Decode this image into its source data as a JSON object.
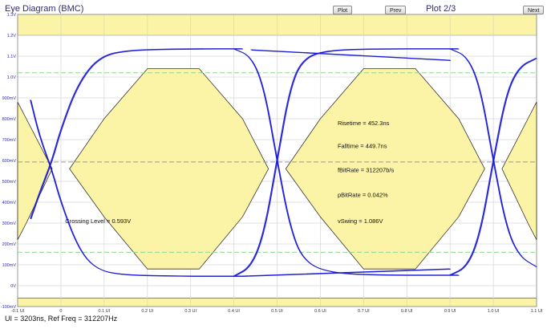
{
  "header": {
    "title": "Eye Diagram (BMC)",
    "plot_label": "Plot 2/3",
    "buttons": {
      "plot": "Plot",
      "prev": "Prev",
      "next": "Next"
    }
  },
  "footer": {
    "info": "UI = 3203ns, Ref Freq = 312207Hz"
  },
  "annotations": {
    "crossing_level": "Crossing Level = 0.593V",
    "risetime": "Risetime = 452.3ns",
    "falltime": "Falltime = 449.7ns",
    "fbitrate": "fBitRate = 312207b/s",
    "pbitrate": "pBitRate = 0.042%",
    "vswing": "vSwing = 1.086V"
  },
  "colors": {
    "trace": "#1a1ad6",
    "mask_fill": "#fbf3a5",
    "mask_stroke": "#333333",
    "grid": "#d6d6d6",
    "crossing_line": "#999999",
    "limit_line": "#8fd88f"
  },
  "chart_data": {
    "type": "line",
    "title": "Eye Diagram (BMC)",
    "x_unit": "UI",
    "y_unit": "V",
    "xlim": [
      -0.1,
      1.1
    ],
    "ylim": [
      -0.1,
      1.3
    ],
    "x_ticks": [
      "-0.1 UI",
      "0",
      "0.1 UI",
      "0.2 UI",
      "0.3 UI",
      "0.4 UI",
      "0.5 UI",
      "0.6 UI",
      "0.7 UI",
      "0.8 UI",
      "0.9 UI",
      "1.0 UI",
      "1.1 UI"
    ],
    "y_ticks": [
      "-100mV",
      "0V",
      "100mV",
      "200mV",
      "300mV",
      "400mV",
      "500mV",
      "600mV",
      "700mV",
      "800mV",
      "900mV",
      "1.0V",
      "1.1V",
      "1.2V",
      "1.3V"
    ],
    "grid": true,
    "crossing_level": 0.593,
    "limit_lines": [
      1.02,
      0.16
    ],
    "forbidden_bands": [
      [
        1.2,
        1.3
      ],
      [
        -0.1,
        -0.06
      ]
    ],
    "high_level": 1.135,
    "low_level": 0.048,
    "crossings": [
      -0.02,
      0.5,
      1.0
    ],
    "masks": [
      {
        "name": "left",
        "points": [
          [
            -0.1,
            0.88
          ],
          [
            -0.08,
            0.8
          ],
          [
            -0.02,
            0.56
          ],
          [
            -0.08,
            0.3
          ],
          [
            -0.1,
            0.22
          ]
        ]
      },
      {
        "name": "eye-1",
        "points": [
          [
            0.02,
            0.56
          ],
          [
            0.1,
            0.8
          ],
          [
            0.2,
            1.04
          ],
          [
            0.32,
            1.04
          ],
          [
            0.42,
            0.8
          ],
          [
            0.48,
            0.56
          ],
          [
            0.42,
            0.33
          ],
          [
            0.32,
            0.08
          ],
          [
            0.2,
            0.08
          ],
          [
            0.1,
            0.33
          ]
        ]
      },
      {
        "name": "eye-2",
        "points": [
          [
            0.52,
            0.56
          ],
          [
            0.6,
            0.8
          ],
          [
            0.7,
            1.04
          ],
          [
            0.82,
            1.04
          ],
          [
            0.92,
            0.8
          ],
          [
            0.98,
            0.56
          ],
          [
            0.92,
            0.33
          ],
          [
            0.82,
            0.08
          ],
          [
            0.7,
            0.08
          ],
          [
            0.6,
            0.33
          ]
        ]
      },
      {
        "name": "right",
        "points": [
          [
            1.1,
            0.88
          ],
          [
            1.08,
            0.8
          ],
          [
            1.02,
            0.56
          ],
          [
            1.08,
            0.3
          ],
          [
            1.1,
            0.22
          ]
        ]
      }
    ],
    "traces": [
      {
        "name": "fall-early",
        "points": [
          [
            -0.07,
            0.89
          ],
          [
            -0.05,
            0.72
          ],
          [
            -0.02,
            0.55
          ],
          [
            0.0,
            0.4
          ],
          [
            0.04,
            0.18
          ],
          [
            0.08,
            0.08
          ],
          [
            0.14,
            0.05
          ],
          [
            0.3,
            0.045
          ],
          [
            0.42,
            0.045
          ]
        ]
      },
      {
        "name": "rise-early",
        "points": [
          [
            -0.07,
            0.32
          ],
          [
            -0.05,
            0.44
          ],
          [
            -0.02,
            0.6
          ],
          [
            0.0,
            0.75
          ],
          [
            0.04,
            0.97
          ],
          [
            0.09,
            1.1
          ],
          [
            0.16,
            1.13
          ],
          [
            0.3,
            1.135
          ],
          [
            0.42,
            1.135
          ]
        ]
      },
      {
        "name": "fall-mid",
        "points": [
          [
            0.4,
            1.135
          ],
          [
            0.44,
            1.1
          ],
          [
            0.47,
            0.95
          ],
          [
            0.5,
            0.6
          ],
          [
            0.53,
            0.28
          ],
          [
            0.56,
            0.12
          ],
          [
            0.62,
            0.06
          ],
          [
            0.75,
            0.05
          ],
          [
            0.92,
            0.05
          ]
        ]
      },
      {
        "name": "rise-mid",
        "points": [
          [
            0.4,
            0.045
          ],
          [
            0.44,
            0.09
          ],
          [
            0.47,
            0.25
          ],
          [
            0.5,
            0.6
          ],
          [
            0.53,
            0.95
          ],
          [
            0.56,
            1.09
          ],
          [
            0.62,
            1.13
          ],
          [
            0.75,
            1.135
          ],
          [
            0.92,
            1.135
          ]
        ]
      },
      {
        "name": "fall-late",
        "points": [
          [
            0.9,
            1.135
          ],
          [
            0.94,
            1.1
          ],
          [
            0.97,
            0.95
          ],
          [
            1.0,
            0.6
          ],
          [
            1.03,
            0.28
          ],
          [
            1.06,
            0.14
          ],
          [
            1.1,
            0.09
          ]
        ]
      },
      {
        "name": "rise-late",
        "points": [
          [
            0.9,
            0.05
          ],
          [
            0.94,
            0.09
          ],
          [
            0.97,
            0.25
          ],
          [
            1.0,
            0.6
          ],
          [
            1.03,
            0.92
          ],
          [
            1.06,
            1.05
          ],
          [
            1.1,
            1.09
          ]
        ]
      },
      {
        "name": "top-diagonal",
        "points": [
          [
            0.44,
            1.13
          ],
          [
            0.9,
            1.08
          ]
        ]
      },
      {
        "name": "bottom-diagonal",
        "points": [
          [
            0.42,
            0.045
          ],
          [
            0.9,
            0.08
          ]
        ]
      }
    ]
  }
}
